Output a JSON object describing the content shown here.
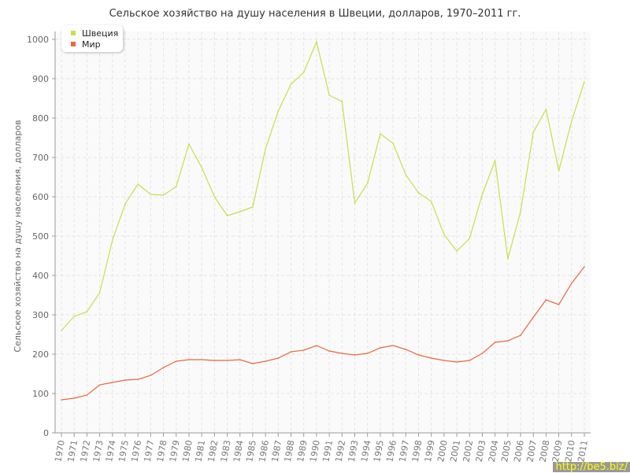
{
  "chart_data": {
    "type": "line",
    "title": "Сельское хозяйство на душу населения в Швеции, долларов, 1970–2011 гг.",
    "xlabel": "",
    "ylabel": "Сельское хозяйство на душу населения, долларов",
    "ylim": [
      0,
      1000
    ],
    "yticks": [
      "0",
      "100",
      "200",
      "300",
      "400",
      "500",
      "600",
      "700",
      "800",
      "900",
      "1000"
    ],
    "grid": true,
    "legend_position": "top-left",
    "x": [
      1970,
      1971,
      1972,
      1973,
      1974,
      1975,
      1976,
      1977,
      1978,
      1979,
      1980,
      1981,
      1982,
      1983,
      1984,
      1985,
      1986,
      1987,
      1988,
      1989,
      1990,
      1991,
      1992,
      1993,
      1994,
      1995,
      1996,
      1997,
      1998,
      1999,
      2000,
      2001,
      2002,
      2003,
      2004,
      2005,
      2006,
      2007,
      2008,
      2009,
      2010,
      2011
    ],
    "series": [
      {
        "name": "Швеция",
        "color": "#c5e04a",
        "values": [
          260,
          296,
          308,
          356,
          490,
          582,
          632,
          606,
          604,
          626,
          734,
          674,
          600,
          552,
          562,
          574,
          722,
          818,
          886,
          916,
          994,
          858,
          842,
          584,
          634,
          760,
          736,
          656,
          610,
          588,
          504,
          462,
          494,
          606,
          692,
          442,
          562,
          764,
          822,
          666,
          792,
          892
        ]
      },
      {
        "name": "Мир",
        "color": "#e8693a",
        "values": [
          84,
          88,
          96,
          122,
          128,
          134,
          136,
          146,
          166,
          182,
          186,
          186,
          184,
          184,
          186,
          176,
          182,
          190,
          206,
          210,
          222,
          208,
          202,
          198,
          202,
          216,
          222,
          212,
          198,
          190,
          184,
          180,
          184,
          202,
          230,
          234,
          248,
          294,
          338,
          326,
          380,
          422
        ]
      }
    ]
  },
  "watermark": "http://be5.biz/"
}
